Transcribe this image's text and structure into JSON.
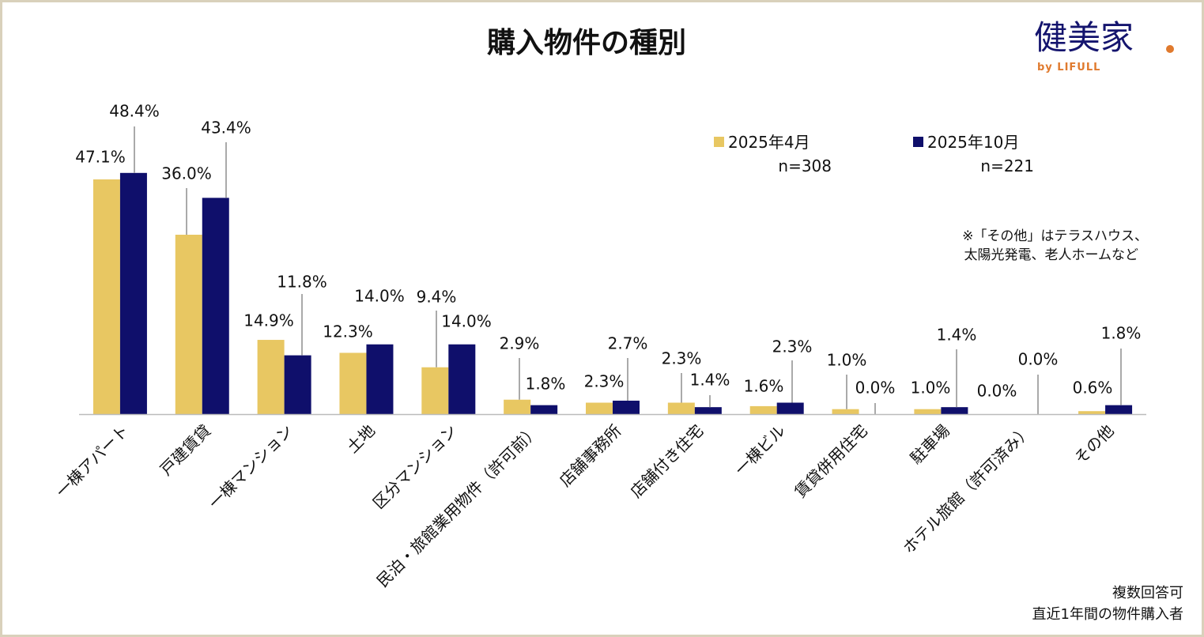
{
  "logo": {
    "main": "健美家",
    "sub": "by LIFULL",
    "color_main": "#14146e",
    "color_accent": "#e07a2e"
  },
  "notes": {
    "remark_line1": "※「その他」はテラスハウス、",
    "remark_line2": "太陽光発電、老人ホームなど",
    "footnote_line1": "複数回答可",
    "footnote_line2": "直近1年間の物件購入者"
  },
  "chart_data": {
    "type": "bar",
    "title": "購入物件の種別",
    "xlabel": "",
    "ylabel": "",
    "ylim": [
      0,
      50
    ],
    "grid": false,
    "legend_placement": "top-right",
    "categories": [
      "一棟アパート",
      "戸建賃貸",
      "一棟マンション",
      "土地",
      "区分マンション",
      "民泊・旅館業用物件（許可前）",
      "店舗事務所",
      "店舗付き住宅",
      "一棟ビル",
      "賃貸併用住宅",
      "駐車場",
      "ホテル旅館（許可済み）",
      "その他"
    ],
    "series": [
      {
        "name": "2025年4月",
        "n": "n=308",
        "color": "#e8c762",
        "values": [
          47.1,
          36.0,
          14.9,
          12.3,
          9.4,
          2.9,
          2.3,
          2.3,
          1.6,
          1.0,
          1.0,
          0.0,
          0.6
        ],
        "labels": [
          "47.1%",
          "36.0%",
          "14.9%",
          "12.3%",
          "9.4%",
          "2.9%",
          "2.3%",
          "2.3%",
          "1.6%",
          "1.0%",
          "1.0%",
          "0.0%",
          "0.6%"
        ]
      },
      {
        "name": "2025年10月",
        "n": "n=221",
        "color": "#0f0f6b",
        "values": [
          48.4,
          43.4,
          11.8,
          14.0,
          14.0,
          1.8,
          2.7,
          1.4,
          2.3,
          0.0,
          1.4,
          0.0,
          1.8
        ],
        "labels": [
          "48.4%",
          "43.4%",
          "11.8%",
          "14.0%",
          "14.0%",
          "1.8%",
          "2.7%",
          "1.4%",
          "2.3%",
          "0.0%",
          "1.4%",
          "0.0%",
          "1.8%"
        ]
      }
    ]
  }
}
